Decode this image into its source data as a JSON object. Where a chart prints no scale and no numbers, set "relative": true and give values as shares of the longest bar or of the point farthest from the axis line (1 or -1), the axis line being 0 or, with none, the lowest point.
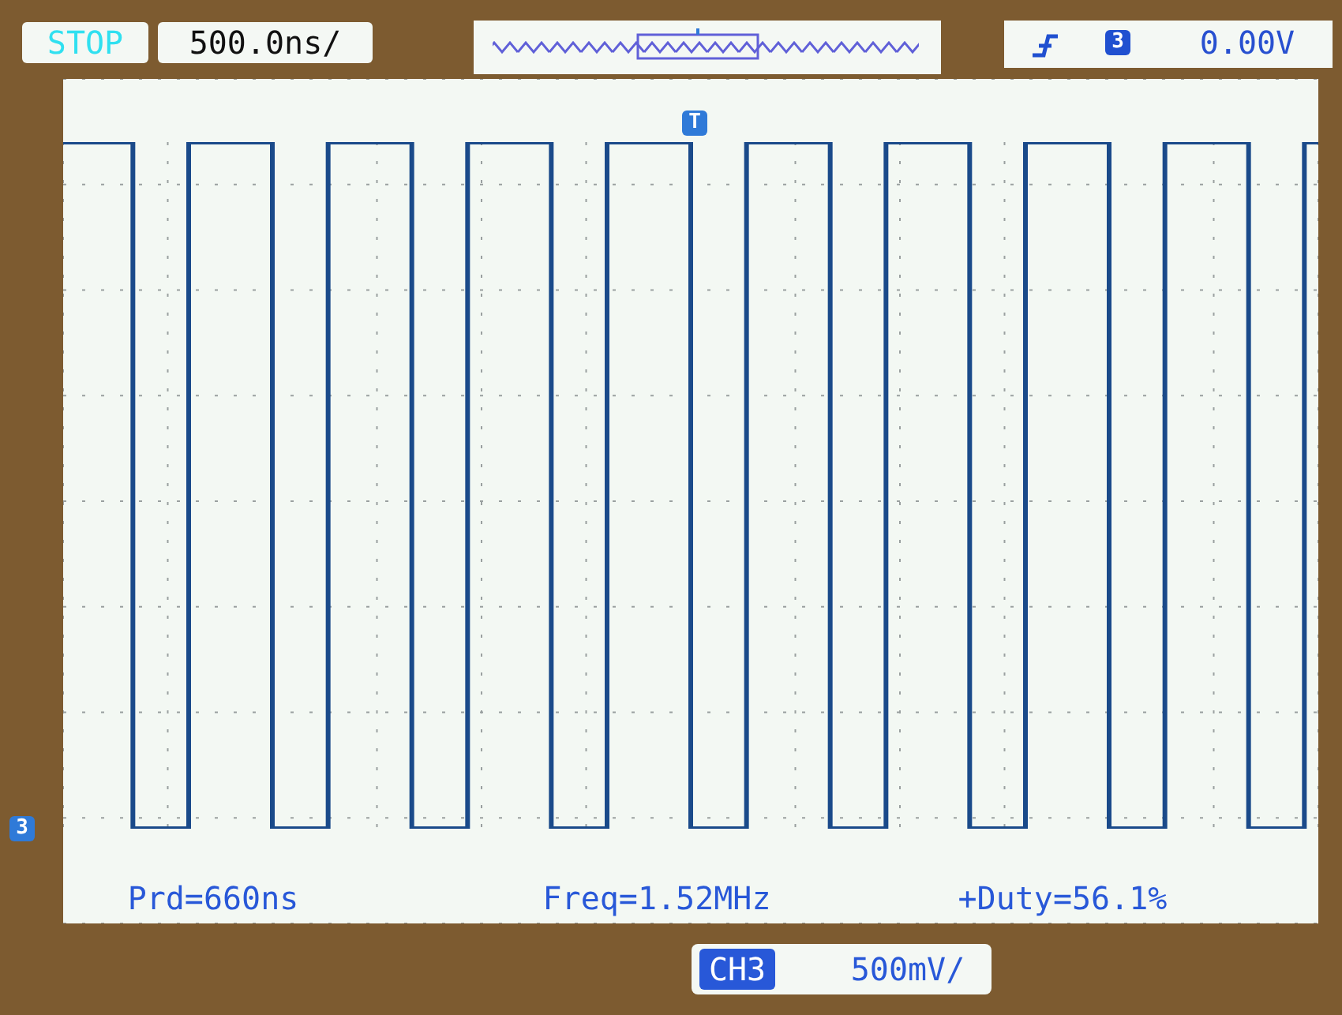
{
  "chart_data": {
    "type": "step",
    "relative": true,
    "grid": true,
    "line_style": "solid",
    "marker": "none",
    "categories": [
      null,
      null,
      null,
      null,
      null,
      null,
      null,
      null,
      null,
      null,
      null,
      null,
      null,
      null,
      null,
      null,
      null,
      null,
      null,
      null,
      null,
      null,
      null,
      null,
      null,
      null,
      null,
      null,
      null,
      null,
      null,
      null,
      null,
      null,
      null,
      null,
      null,
      null,
      null,
      null,
      null,
      null,
      null,
      null,
      null,
      null,
      null,
      null,
      null,
      null,
      null,
      null,
      null,
      null,
      null,
      null,
      null,
      null,
      null,
      null,
      null,
      null,
      null,
      null,
      null,
      null,
      null,
      null,
      null,
      null,
      null,
      null,
      null,
      null,
      null,
      null,
      null,
      null,
      null,
      null,
      null,
      null,
      null,
      null,
      null,
      null,
      null,
      null,
      null,
      null,
      null
    ],
    "series": [
      {
        "color": "#1a4a8a",
        "values": [
          1,
          1,
          1,
          1,
          1,
          0,
          0,
          0,
          0,
          1,
          1,
          1,
          1,
          1,
          1,
          0,
          0,
          0,
          0,
          1,
          1,
          1,
          1,
          1,
          1,
          0,
          0,
          0,
          0,
          1,
          1,
          1,
          1,
          1,
          1,
          0,
          0,
          0,
          0,
          1,
          1,
          1,
          1,
          1,
          1,
          0,
          0,
          0,
          0,
          1,
          1,
          1,
          1,
          1,
          1,
          0,
          0,
          0,
          0,
          1,
          1,
          1,
          1,
          1,
          1,
          0,
          0,
          0,
          0,
          1,
          1,
          1,
          1,
          1,
          1,
          0,
          0,
          0,
          0,
          1,
          1,
          1,
          1,
          1,
          1,
          0,
          0,
          0,
          0,
          1,
          1
        ]
      }
    ],
    "annotations": [
      "STOP",
      "500.0ns/",
      "0.00V",
      "Prd=660ns",
      "Freq=1.52MHz",
      "+Duty=56.1%",
      "CH3",
      "500mV/",
      "T",
      "3",
      "3"
    ]
  }
}
